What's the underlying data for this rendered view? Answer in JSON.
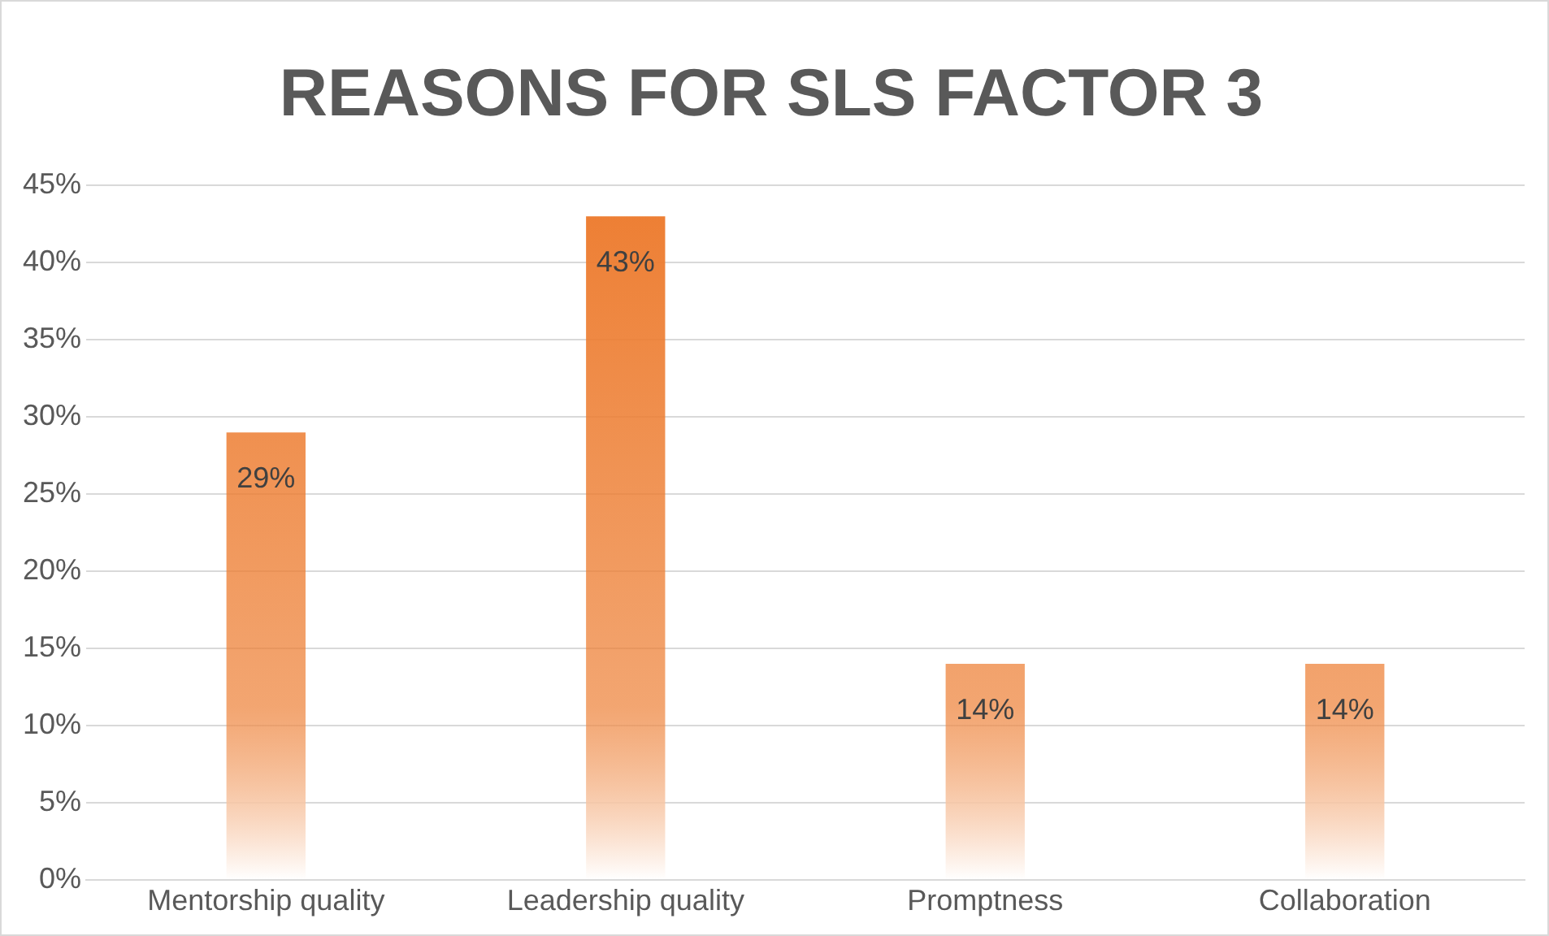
{
  "chart_data": {
    "type": "bar",
    "title": "REASONS FOR SLS FACTOR 3",
    "categories": [
      "Mentorship quality",
      "Leadership quality",
      "Promptness",
      "Collaboration"
    ],
    "values": [
      29,
      43,
      14,
      14
    ],
    "value_labels": [
      "29%",
      "43%",
      "14%",
      "14%"
    ],
    "color": "#ed7d31",
    "ylim": [
      0,
      45
    ],
    "yticks": [
      {
        "value": 0,
        "label": "0%"
      },
      {
        "value": 5,
        "label": "5%"
      },
      {
        "value": 10,
        "label": "10%"
      },
      {
        "value": 15,
        "label": "15%"
      },
      {
        "value": 20,
        "label": "20%"
      },
      {
        "value": 25,
        "label": "25%"
      },
      {
        "value": 30,
        "label": "30%"
      },
      {
        "value": 35,
        "label": "35%"
      },
      {
        "value": 40,
        "label": "40%"
      },
      {
        "value": 45,
        "label": "45%"
      }
    ],
    "grid": "y",
    "legend": false
  }
}
